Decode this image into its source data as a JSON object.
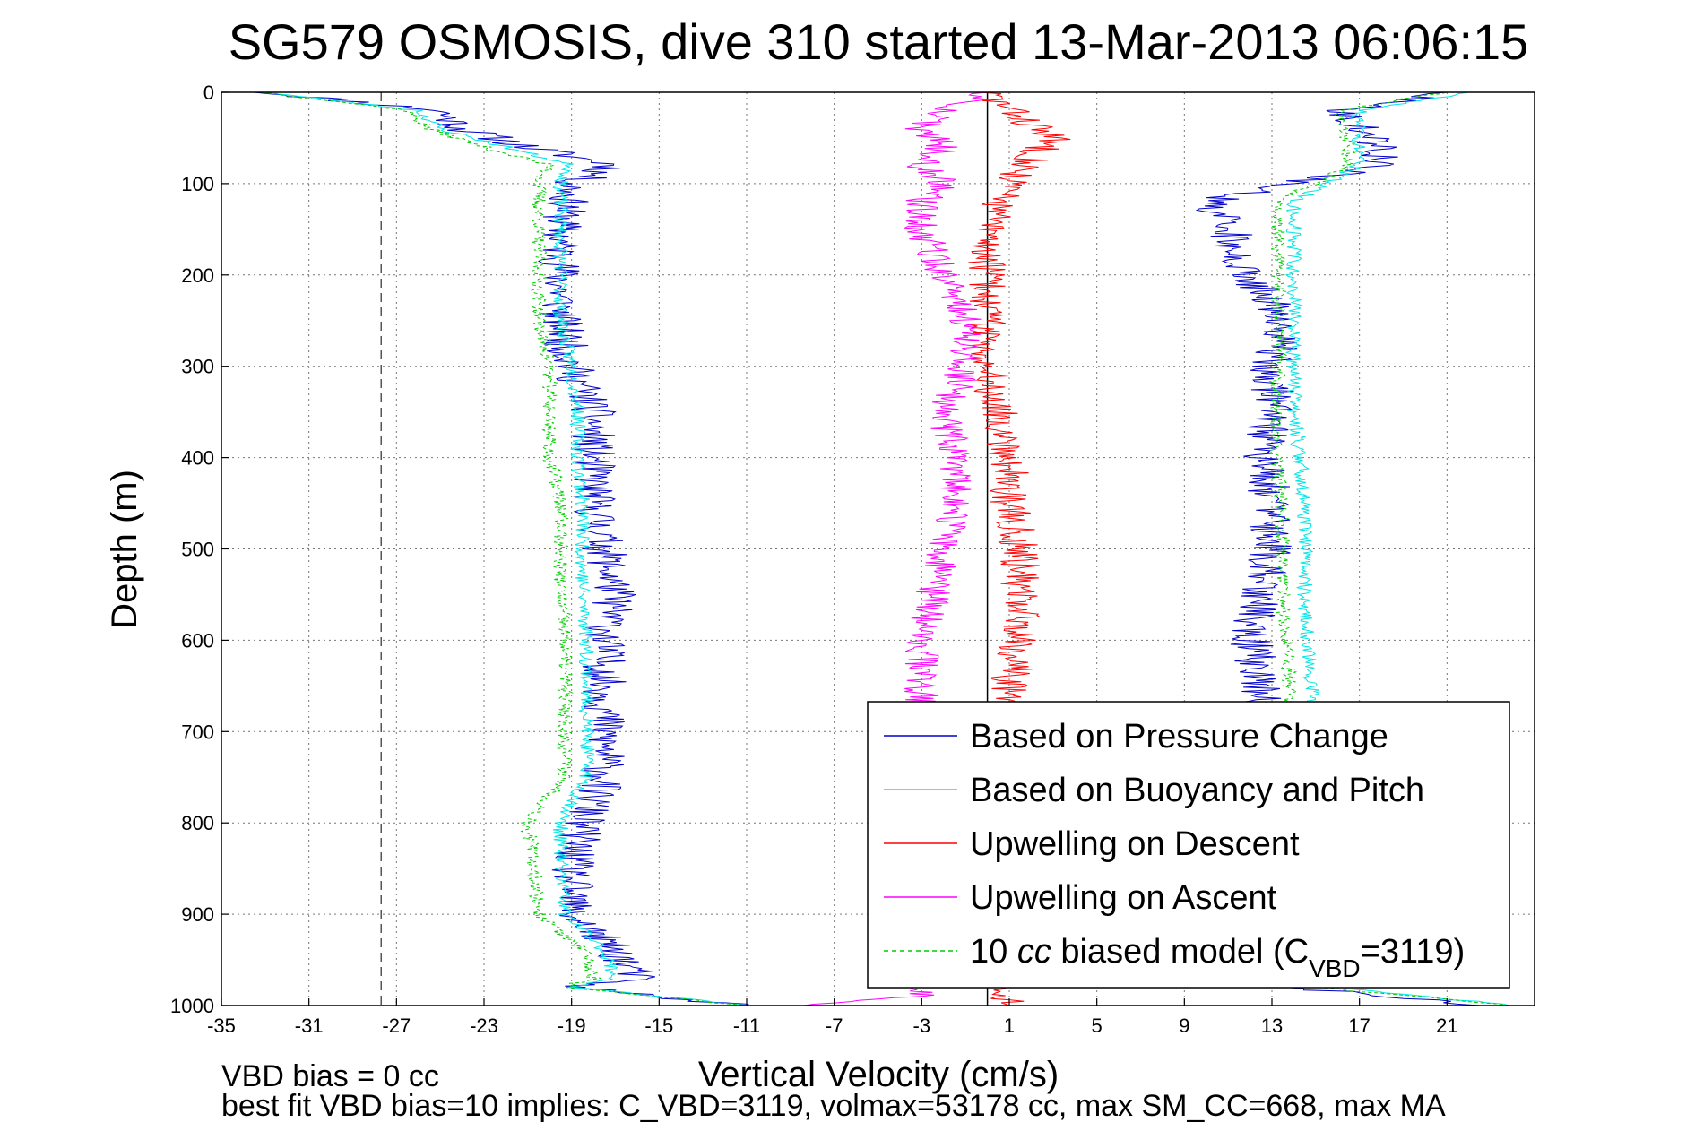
{
  "chart_data": {
    "type": "line",
    "title": "SG579 OSMOSIS, dive 310 started 13-Mar-2013 06:06:15",
    "xlabel": "Vertical Velocity (cm/s)",
    "ylabel": "Depth (m)",
    "xlim": [
      -35,
      25
    ],
    "ylim": [
      0,
      1000
    ],
    "y_reversed": true,
    "grid": true,
    "xticks": [
      -35,
      -31,
      -27,
      -23,
      -19,
      -15,
      -11,
      -7,
      -3,
      1,
      5,
      9,
      13,
      17,
      21
    ],
    "yticks": [
      0,
      100,
      200,
      300,
      400,
      500,
      600,
      700,
      800,
      900,
      1000
    ],
    "reference_lines": [
      {
        "x": -27.7,
        "style": "dashed",
        "color": "#555555"
      },
      {
        "x": 0,
        "style": "solid",
        "color": "#000000"
      }
    ],
    "legend": {
      "placement": "bottom-right",
      "entries": [
        {
          "label": "Based on Pressure Change",
          "color": "#0000cc",
          "style": "solid"
        },
        {
          "label": "Based on Buoyancy and Pitch",
          "color": "#00e5e5",
          "style": "solid"
        },
        {
          "label": "Upwelling on Descent",
          "color": "#ff0000",
          "style": "solid"
        },
        {
          "label": "Upwelling on Ascent",
          "color": "#ff00ff",
          "style": "solid"
        },
        {
          "label_main": "10 ",
          "label_italic": "cc",
          "label_rest": " biased model (C",
          "label_sub": "VBD",
          "label_end": "=3119)",
          "color": "#00cc00",
          "style": "dashed"
        }
      ]
    },
    "series": [
      {
        "key": "descent_pressure",
        "color": "#0000cc",
        "style": "solid",
        "noise": 1.0,
        "seed": 11,
        "depth": [
          0,
          20,
          40,
          60,
          80,
          100,
          150,
          200,
          250,
          300,
          350,
          400,
          450,
          500,
          550,
          600,
          650,
          700,
          750,
          800,
          850,
          900,
          940,
          970,
          980,
          1000
        ],
        "values": [
          -33,
          -25,
          -24,
          -21,
          -17,
          -19,
          -19.5,
          -19.5,
          -19.5,
          -19,
          -18,
          -18,
          -18,
          -17.5,
          -17,
          -17.5,
          -17.5,
          -17.5,
          -17.5,
          -18.5,
          -19,
          -19,
          -17,
          -16,
          -19,
          -11
        ]
      },
      {
        "key": "descent_model",
        "color": "#00e5e5",
        "style": "solid",
        "noise": 0.35,
        "seed": 23,
        "depth": [
          0,
          20,
          40,
          60,
          80,
          100,
          150,
          200,
          250,
          300,
          350,
          400,
          450,
          500,
          550,
          600,
          650,
          700,
          750,
          800,
          850,
          900,
          940,
          970,
          980,
          1000
        ],
        "values": [
          -33,
          -26,
          -25,
          -22,
          -19,
          -19.5,
          -19.5,
          -19.5,
          -19.5,
          -19,
          -18.7,
          -18.7,
          -18.5,
          -18.5,
          -18.5,
          -18.3,
          -18.3,
          -18.3,
          -18.3,
          -19.5,
          -19.5,
          -19.3,
          -17.5,
          -17,
          -19,
          -11
        ]
      },
      {
        "key": "descent_biased",
        "color": "#00cc00",
        "style": "dashed",
        "noise": 0.35,
        "seed": 37,
        "depth": [
          0,
          20,
          40,
          60,
          80,
          100,
          150,
          200,
          250,
          300,
          350,
          400,
          450,
          500,
          550,
          600,
          650,
          700,
          750,
          800,
          850,
          900,
          940,
          970,
          980,
          1000
        ],
        "values": [
          -33,
          -26.5,
          -25.5,
          -23,
          -20,
          -20.5,
          -20.5,
          -20.5,
          -20.5,
          -20,
          -20,
          -20,
          -19.5,
          -19.5,
          -19.5,
          -19.3,
          -19.3,
          -19.3,
          -19.3,
          -21,
          -20.7,
          -20.5,
          -18.5,
          -18,
          -19.5,
          -11
        ]
      },
      {
        "key": "ascent_pressure",
        "color": "#0000cc",
        "style": "solid",
        "noise": 1.0,
        "seed": 53,
        "depth": [
          1000,
          980,
          950,
          900,
          850,
          800,
          750,
          700,
          650,
          600,
          550,
          500,
          450,
          400,
          350,
          300,
          250,
          200,
          150,
          120,
          100,
          80,
          60,
          40,
          20,
          0
        ],
        "values": [
          23,
          14,
          13,
          13,
          12.5,
          12.5,
          12.5,
          12.5,
          12.5,
          12,
          12.5,
          13,
          13,
          12.5,
          13,
          13,
          13.5,
          12,
          11,
          10,
          14,
          18,
          18,
          17,
          16,
          21
        ]
      },
      {
        "key": "ascent_model",
        "color": "#00e5e5",
        "style": "solid",
        "noise": 0.35,
        "seed": 61,
        "depth": [
          1000,
          980,
          950,
          900,
          850,
          800,
          750,
          700,
          650,
          600,
          550,
          500,
          450,
          400,
          350,
          300,
          250,
          200,
          150,
          120,
          100,
          80,
          60,
          40,
          20,
          0
        ],
        "values": [
          24,
          16,
          15.3,
          15.3,
          15.3,
          15.2,
          15.1,
          15,
          14.8,
          14.6,
          14.5,
          14.5,
          14.5,
          14.3,
          14,
          14,
          14,
          14,
          14,
          14,
          15.5,
          17,
          17,
          17,
          17,
          22
        ]
      },
      {
        "key": "ascent_biased",
        "color": "#00cc00",
        "style": "dashed",
        "noise": 0.35,
        "seed": 71,
        "depth": [
          1000,
          980,
          950,
          900,
          850,
          800,
          750,
          700,
          650,
          600,
          550,
          500,
          450,
          400,
          350,
          300,
          250,
          200,
          150,
          120,
          100,
          80,
          60,
          40,
          20,
          0
        ],
        "values": [
          24,
          15,
          14,
          14,
          14,
          14,
          14,
          14,
          13.8,
          13.7,
          13.5,
          13.5,
          13.4,
          13.2,
          13.2,
          13.3,
          13.3,
          13.3,
          13.3,
          13.2,
          15,
          16.5,
          16.5,
          16.3,
          16,
          21
        ]
      },
      {
        "key": "upwelling_descent",
        "color": "#ff0000",
        "style": "solid",
        "noise": 0.9,
        "seed": 83,
        "depth": [
          0,
          20,
          50,
          100,
          150,
          200,
          250,
          300,
          350,
          400,
          450,
          500,
          550,
          600,
          650,
          700,
          750,
          800,
          850,
          900,
          950,
          980,
          1000
        ],
        "values": [
          0,
          1,
          3,
          1,
          0,
          0,
          0,
          0,
          0.5,
          1,
          1,
          1.5,
          1.5,
          1.5,
          1,
          1,
          1,
          1,
          1,
          1,
          1,
          1,
          1
        ]
      },
      {
        "key": "upwelling_ascent",
        "color": "#ff00ff",
        "style": "solid",
        "noise": 0.8,
        "seed": 97,
        "depth": [
          1000,
          990,
          950,
          900,
          850,
          800,
          750,
          700,
          650,
          600,
          550,
          500,
          450,
          400,
          350,
          300,
          250,
          200,
          150,
          120,
          100,
          80,
          60,
          40,
          20,
          0
        ],
        "values": [
          -8,
          -3,
          -3,
          -3,
          -3,
          -3,
          -3,
          -3,
          -3,
          -3,
          -2.5,
          -2,
          -1.5,
          -1.5,
          -2,
          -1,
          -1,
          -2,
          -3,
          -3,
          -2,
          -3,
          -2,
          -3,
          -2,
          0
        ]
      }
    ]
  },
  "footer": {
    "line1": "VBD bias = 0 cc",
    "line2": "best fit VBD bias=10 implies: C_VBD=3119, volmax=53178 cc, max SM_CC=668, max MA"
  }
}
